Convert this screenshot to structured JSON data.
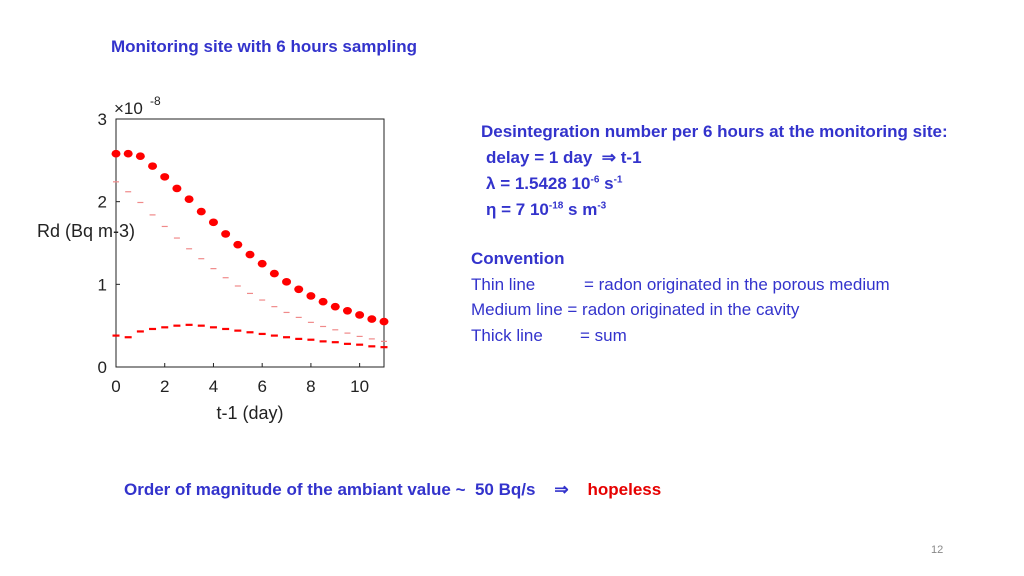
{
  "slide": {
    "title": "Monitoring site with 6 hours sampling",
    "page_number": "12"
  },
  "desc": {
    "line1": "Desintegration number per 6 hours at the monitoring site:",
    "delay_text": "delay = 1 day",
    "implies": "⇒",
    "delay_result": "t-1",
    "lambda_sym": "λ",
    "lambda_val": " = 1.5428 10",
    "lambda_exp": "-6",
    "lambda_unit": " s",
    "lambda_unit_exp": "-1",
    "eta_sym": "η",
    "eta_val": " = 7 10",
    "eta_exp": "-18",
    "eta_unit": " s m",
    "eta_unit_exp": "-3"
  },
  "convention": {
    "heading": "Convention",
    "thin_label": "Thin line",
    "thin_desc": "= radon originated in the porous medium",
    "medium_label": "Medium line",
    "medium_desc": "= radon originated in the cavity",
    "thick_label": "Thick line",
    "thick_desc": "= sum"
  },
  "ambient": {
    "text": "Order of magnitude of the ambiant value",
    "tilde": "~",
    "value": "50 Bq/s",
    "implies": "⇒",
    "result": "hopeless"
  },
  "colors": {
    "text_blue": "#3333cc",
    "alert_red": "#e60000",
    "series_red": "#ff0000"
  },
  "chart_data": {
    "type": "scatter",
    "xlabel": "t-1 (day)",
    "ylabel": "Rd (Bq m-3)",
    "scale_base": "×10",
    "scale_exp": "-8",
    "xlim": [
      0,
      11
    ],
    "ylim": [
      0,
      3
    ],
    "xticks": [
      0,
      2,
      4,
      6,
      8,
      10
    ],
    "yticks": [
      0,
      1,
      2,
      3
    ],
    "series": [
      {
        "x": [
          0,
          0.5,
          1,
          1.5,
          2,
          2.5,
          3,
          3.5,
          4,
          4.5,
          5,
          5.5,
          6,
          6.5,
          7,
          7.5,
          8,
          8.5,
          9,
          9.5,
          10,
          10.5,
          11
        ],
        "y": [
          2.58,
          2.58,
          2.55,
          2.43,
          2.3,
          2.16,
          2.03,
          1.88,
          1.75,
          1.61,
          1.48,
          1.36,
          1.25,
          1.13,
          1.03,
          0.94,
          0.86,
          0.79,
          0.73,
          0.68,
          0.63,
          0.58,
          0.55
        ]
      },
      {
        "x": [
          0,
          0.5,
          1,
          1.5,
          2,
          2.5,
          3,
          3.5,
          4,
          4.5,
          5,
          5.5,
          6,
          6.5,
          7,
          7.5,
          8,
          8.5,
          9,
          9.5,
          10,
          10.5,
          11
        ],
        "y": [
          2.24,
          2.12,
          1.99,
          1.84,
          1.7,
          1.56,
          1.43,
          1.31,
          1.19,
          1.08,
          0.98,
          0.89,
          0.81,
          0.73,
          0.66,
          0.6,
          0.54,
          0.49,
          0.45,
          0.41,
          0.37,
          0.34,
          0.31
        ]
      },
      {
        "x": [
          0,
          0.5,
          1,
          1.5,
          2,
          2.5,
          3,
          3.5,
          4,
          4.5,
          5,
          5.5,
          6,
          6.5,
          7,
          7.5,
          8,
          8.5,
          9,
          9.5,
          10,
          10.5,
          11
        ],
        "y": [
          0.38,
          0.36,
          0.43,
          0.46,
          0.48,
          0.5,
          0.51,
          0.5,
          0.48,
          0.46,
          0.44,
          0.42,
          0.4,
          0.38,
          0.36,
          0.34,
          0.33,
          0.31,
          0.3,
          0.28,
          0.27,
          0.25,
          0.24
        ]
      }
    ]
  }
}
